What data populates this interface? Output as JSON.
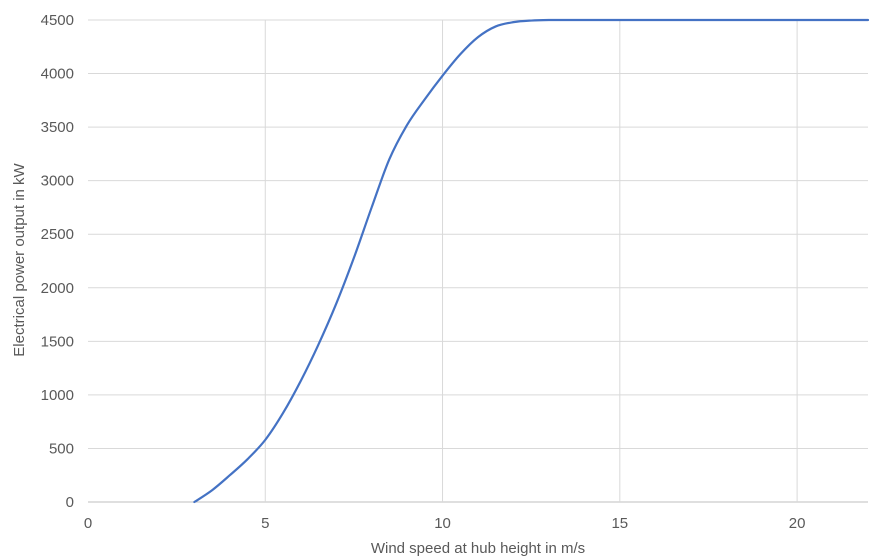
{
  "chart_data": {
    "type": "line",
    "title": "",
    "xlabel": "Wind speed at hub height in m/s",
    "ylabel": "Electrical power output in kW",
    "xlim": [
      0,
      22
    ],
    "ylim": [
      0,
      4500
    ],
    "x_ticks": [
      0,
      5,
      10,
      15,
      20
    ],
    "y_ticks": [
      0,
      500,
      1000,
      1500,
      2000,
      2500,
      3000,
      3500,
      4000,
      4500
    ],
    "x_tick_labels": [
      "0",
      "5",
      "10",
      "15",
      "20"
    ],
    "y_tick_labels": [
      "0",
      "500",
      "1000",
      "1500",
      "2000",
      "2500",
      "3000",
      "3500",
      "4000",
      "4500"
    ],
    "grid": true,
    "legend": "none",
    "series": [
      {
        "color": "#4472C4",
        "x": [
          3,
          3.5,
          4,
          4.5,
          5,
          5.5,
          6,
          6.5,
          7,
          7.5,
          8,
          8.5,
          9,
          9.5,
          10,
          10.5,
          11,
          11.5,
          12,
          12.5,
          13,
          13.5,
          14,
          15,
          16,
          17,
          18,
          19,
          20,
          21,
          22
        ],
        "y": [
          0,
          110,
          250,
          400,
          580,
          830,
          1130,
          1470,
          1850,
          2280,
          2750,
          3200,
          3520,
          3760,
          3980,
          4180,
          4340,
          4440,
          4480,
          4495,
          4500,
          4500,
          4500,
          4500,
          4500,
          4500,
          4500,
          4500,
          4500,
          4500,
          4500
        ]
      }
    ]
  }
}
